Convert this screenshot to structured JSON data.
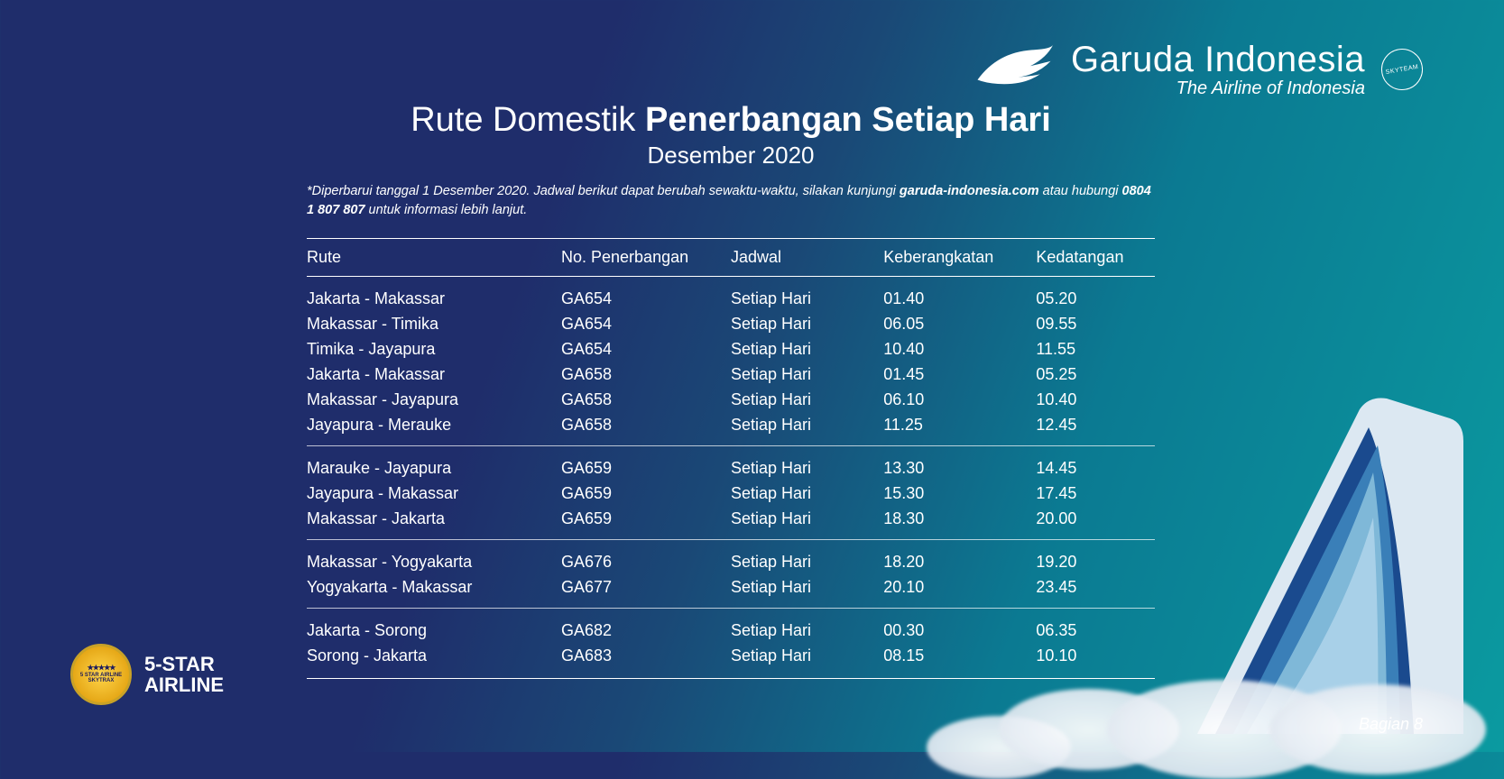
{
  "brand": {
    "name": "Garuda Indonesia",
    "tagline": "The Airline of Indonesia",
    "skyteam": "SKYTEAM"
  },
  "title": {
    "light": "Rute Domestik ",
    "bold": "Penerbangan Setiap Hari"
  },
  "subtitle": "Desember 2020",
  "note": {
    "t1": "*Diperbarui tanggal 1 Desember 2020. Jadwal berikut dapat berubah sewaktu-waktu, silakan kunjungi ",
    "b1": "garuda-indonesia.com",
    "t2": " atau hubungi ",
    "b2": "0804 1 807 807",
    "t3": " untuk informasi lebih lanjut."
  },
  "columns": [
    "Rute",
    "No. Penerbangan",
    "Jadwal",
    "Keberangkatan",
    "Kedatangan"
  ],
  "groups": [
    [
      {
        "route": "Jakarta - Makassar",
        "no": "GA654",
        "sched": "Setiap Hari",
        "dep": "01.40",
        "arr": "05.20"
      },
      {
        "route": "Makassar - Timika",
        "no": "GA654",
        "sched": "Setiap Hari",
        "dep": "06.05",
        "arr": "09.55"
      },
      {
        "route": "Timika - Jayapura",
        "no": "GA654",
        "sched": "Setiap Hari",
        "dep": "10.40",
        "arr": "11.55"
      },
      {
        "route": "Jakarta - Makassar",
        "no": "GA658",
        "sched": "Setiap Hari",
        "dep": "01.45",
        "arr": "05.25"
      },
      {
        "route": "Makassar - Jayapura",
        "no": "GA658",
        "sched": "Setiap Hari",
        "dep": "06.10",
        "arr": "10.40"
      },
      {
        "route": "Jayapura - Merauke",
        "no": "GA658",
        "sched": "Setiap Hari",
        "dep": "11.25",
        "arr": "12.45"
      }
    ],
    [
      {
        "route": "Marauke - Jayapura",
        "no": "GA659",
        "sched": "Setiap Hari",
        "dep": "13.30",
        "arr": "14.45"
      },
      {
        "route": "Jayapura - Makassar",
        "no": "GA659",
        "sched": "Setiap Hari",
        "dep": "15.30",
        "arr": "17.45"
      },
      {
        "route": "Makassar - Jakarta",
        "no": "GA659",
        "sched": "Setiap Hari",
        "dep": "18.30",
        "arr": "20.00"
      }
    ],
    [
      {
        "route": "Makassar - Yogyakarta",
        "no": "GA676",
        "sched": "Setiap Hari",
        "dep": "18.20",
        "arr": "19.20"
      },
      {
        "route": "Yogyakarta - Makassar",
        "no": "GA677",
        "sched": "Setiap Hari",
        "dep": "20.10",
        "arr": "23.45"
      }
    ],
    [
      {
        "route": "Jakarta - Sorong",
        "no": "GA682",
        "sched": "Setiap Hari",
        "dep": "00.30",
        "arr": "06.35"
      },
      {
        "route": "Sorong - Jakarta",
        "no": "GA683",
        "sched": "Setiap Hari",
        "dep": "08.15",
        "arr": "10.10"
      }
    ]
  ],
  "skytrax": {
    "line1": "5-STAR",
    "line2": "AIRLINE",
    "badge_top": "5 STAR AIRLINE",
    "badge_mid": "SKYTRAX"
  },
  "page": "Bagian 8",
  "colors": {
    "white": "#ffffff",
    "tail_blue": "#1a4a8e",
    "tail_light": "#7fb8d8",
    "tail_mid": "#3a7fb8"
  }
}
